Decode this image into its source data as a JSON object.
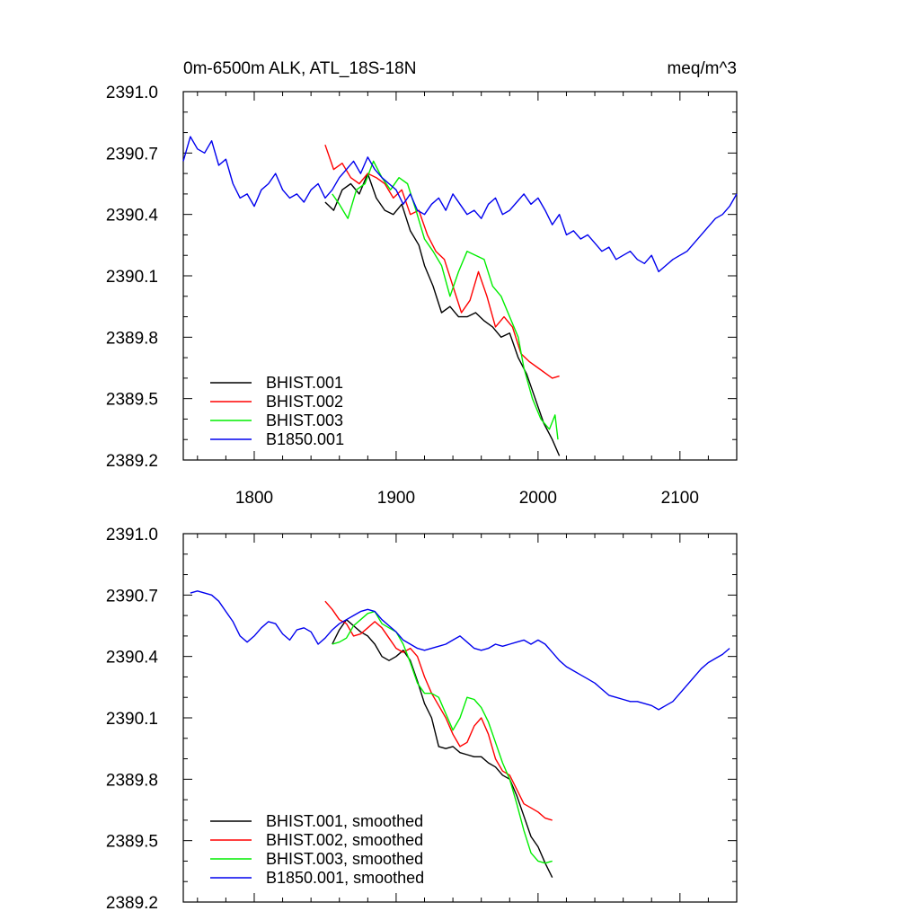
{
  "chart_data": [
    {
      "type": "line",
      "title": "0m-6500m ALK, ATL_18S-18N",
      "units": "meq/m^3",
      "xlim": [
        1750,
        2140
      ],
      "ylim": [
        2389.2,
        2391.0
      ],
      "x_ticks": [
        1800,
        1900,
        2000,
        2100
      ],
      "x_tick_labels": [
        "1800",
        "1900",
        "2000",
        "2100"
      ],
      "y_ticks": [
        2389.2,
        2389.5,
        2389.8,
        2390.1,
        2390.4,
        2390.7,
        2391.0
      ],
      "y_tick_labels": [
        "2389.2",
        "2389.5",
        "2389.8",
        "2390.1",
        "2390.4",
        "2390.7",
        "2391.0"
      ],
      "legend_position": "bottom-left",
      "series": [
        {
          "name": "BHIST.001",
          "color": "#000000",
          "x": [
            1850,
            1856,
            1862,
            1868,
            1874,
            1880,
            1886,
            1892,
            1898,
            1904,
            1910,
            1916,
            1920,
            1926,
            1932,
            1938,
            1944,
            1950,
            1956,
            1962,
            1968,
            1974,
            1980,
            1986,
            1992,
            1998,
            2004,
            2010,
            2015
          ],
          "y": [
            2390.46,
            2390.42,
            2390.52,
            2390.55,
            2390.5,
            2390.6,
            2390.48,
            2390.42,
            2390.4,
            2390.45,
            2390.32,
            2390.25,
            2390.15,
            2390.05,
            2389.92,
            2389.95,
            2389.9,
            2389.9,
            2389.92,
            2389.88,
            2389.85,
            2389.8,
            2389.82,
            2389.7,
            2389.62,
            2389.5,
            2389.38,
            2389.3,
            2389.22
          ]
        },
        {
          "name": "BHIST.002",
          "color": "#ff0000",
          "x": [
            1850,
            1856,
            1862,
            1868,
            1874,
            1880,
            1886,
            1892,
            1898,
            1904,
            1910,
            1916,
            1922,
            1928,
            1934,
            1940,
            1946,
            1952,
            1958,
            1964,
            1970,
            1976,
            1982,
            1988,
            1994,
            2000,
            2006,
            2010,
            2015
          ],
          "y": [
            2390.74,
            2390.62,
            2390.65,
            2390.58,
            2390.55,
            2390.6,
            2390.58,
            2390.55,
            2390.48,
            2390.52,
            2390.4,
            2390.42,
            2390.3,
            2390.22,
            2390.18,
            2390.05,
            2389.92,
            2389.98,
            2390.12,
            2390.0,
            2389.85,
            2389.9,
            2389.85,
            2389.72,
            2389.68,
            2389.65,
            2389.62,
            2389.6,
            2389.61
          ]
        },
        {
          "name": "BHIST.003",
          "color": "#00ee00",
          "x": [
            1855,
            1860,
            1866,
            1872,
            1878,
            1884,
            1890,
            1896,
            1902,
            1908,
            1914,
            1920,
            1926,
            1932,
            1938,
            1944,
            1950,
            1956,
            1962,
            1968,
            1974,
            1980,
            1986,
            1990,
            1996,
            2002,
            2008,
            2012,
            2014
          ],
          "y": [
            2390.5,
            2390.45,
            2390.38,
            2390.52,
            2390.55,
            2390.66,
            2390.58,
            2390.52,
            2390.58,
            2390.55,
            2390.42,
            2390.28,
            2390.22,
            2390.15,
            2390.0,
            2390.12,
            2390.22,
            2390.2,
            2390.18,
            2390.05,
            2390.0,
            2389.9,
            2389.8,
            2389.65,
            2389.5,
            2389.4,
            2389.35,
            2389.42,
            2389.3
          ]
        },
        {
          "name": "B1850.001",
          "color": "#0000ee",
          "x": [
            1750,
            1755,
            1760,
            1765,
            1770,
            1775,
            1780,
            1785,
            1790,
            1795,
            1800,
            1805,
            1810,
            1815,
            1820,
            1825,
            1830,
            1835,
            1840,
            1845,
            1850,
            1855,
            1860,
            1865,
            1870,
            1875,
            1880,
            1885,
            1890,
            1895,
            1900,
            1905,
            1910,
            1915,
            1920,
            1925,
            1930,
            1935,
            1940,
            1945,
            1950,
            1955,
            1960,
            1965,
            1970,
            1975,
            1980,
            1985,
            1990,
            1995,
            2000,
            2005,
            2010,
            2015,
            2020,
            2025,
            2030,
            2035,
            2040,
            2045,
            2050,
            2055,
            2060,
            2065,
            2070,
            2075,
            2080,
            2085,
            2090,
            2095,
            2100,
            2105,
            2110,
            2115,
            2120,
            2125,
            2130,
            2135,
            2140
          ],
          "y": [
            2390.66,
            2390.78,
            2390.72,
            2390.7,
            2390.76,
            2390.64,
            2390.67,
            2390.55,
            2390.48,
            2390.5,
            2390.44,
            2390.52,
            2390.55,
            2390.6,
            2390.52,
            2390.48,
            2390.5,
            2390.46,
            2390.52,
            2390.55,
            2390.48,
            2390.52,
            2390.58,
            2390.62,
            2390.66,
            2390.6,
            2390.68,
            2390.62,
            2390.58,
            2390.55,
            2390.52,
            2390.45,
            2390.5,
            2390.42,
            2390.4,
            2390.45,
            2390.48,
            2390.42,
            2390.5,
            2390.45,
            2390.4,
            2390.42,
            2390.38,
            2390.45,
            2390.48,
            2390.4,
            2390.42,
            2390.46,
            2390.5,
            2390.45,
            2390.48,
            2390.42,
            2390.35,
            2390.4,
            2390.3,
            2390.32,
            2390.28,
            2390.3,
            2390.26,
            2390.22,
            2390.24,
            2390.18,
            2390.2,
            2390.22,
            2390.18,
            2390.16,
            2390.2,
            2390.12,
            2390.15,
            2390.18,
            2390.2,
            2390.22,
            2390.26,
            2390.3,
            2390.34,
            2390.38,
            2390.4,
            2390.44,
            2390.5
          ]
        }
      ]
    },
    {
      "type": "line",
      "xlim": [
        1750,
        2140
      ],
      "ylim": [
        2389.2,
        2391.0
      ],
      "x_ticks": [
        1800,
        1900,
        2000,
        2100
      ],
      "y_ticks": [
        2389.2,
        2389.5,
        2389.8,
        2390.1,
        2390.4,
        2390.7,
        2391.0
      ],
      "y_tick_labels": [
        "2389.2",
        "2389.5",
        "2389.8",
        "2390.1",
        "2390.4",
        "2390.7",
        "2391.0"
      ],
      "legend_position": "bottom-left",
      "series": [
        {
          "name": "BHIST.001, smoothed",
          "color": "#000000",
          "x": [
            1855,
            1860,
            1865,
            1870,
            1875,
            1880,
            1885,
            1890,
            1895,
            1900,
            1905,
            1910,
            1915,
            1920,
            1925,
            1930,
            1935,
            1940,
            1945,
            1950,
            1955,
            1960,
            1965,
            1970,
            1975,
            1980,
            1985,
            1990,
            1995,
            2000,
            2005,
            2010
          ],
          "y": [
            2390.46,
            2390.53,
            2390.58,
            2390.55,
            2390.52,
            2390.5,
            2390.46,
            2390.4,
            2390.38,
            2390.4,
            2390.43,
            2390.38,
            2390.28,
            2390.17,
            2390.1,
            2389.96,
            2389.95,
            2389.96,
            2389.93,
            2389.92,
            2389.91,
            2389.91,
            2389.88,
            2389.86,
            2389.82,
            2389.8,
            2389.72,
            2389.62,
            2389.52,
            2389.47,
            2389.39,
            2389.32
          ]
        },
        {
          "name": "BHIST.002, smoothed",
          "color": "#ff0000",
          "x": [
            1850,
            1855,
            1860,
            1865,
            1870,
            1875,
            1880,
            1885,
            1890,
            1895,
            1900,
            1905,
            1910,
            1915,
            1920,
            1925,
            1930,
            1935,
            1940,
            1945,
            1950,
            1955,
            1960,
            1965,
            1970,
            1975,
            1980,
            1985,
            1990,
            1995,
            2000,
            2005,
            2010
          ],
          "y": [
            2390.67,
            2390.63,
            2390.58,
            2390.56,
            2390.5,
            2390.51,
            2390.54,
            2390.57,
            2390.54,
            2390.49,
            2390.44,
            2390.42,
            2390.44,
            2390.4,
            2390.3,
            2390.22,
            2390.16,
            2390.1,
            2390.02,
            2389.96,
            2389.98,
            2390.06,
            2390.1,
            2390.02,
            2389.9,
            2389.84,
            2389.82,
            2389.75,
            2389.68,
            2389.66,
            2389.64,
            2389.61,
            2389.6
          ]
        },
        {
          "name": "BHIST.003, smoothed",
          "color": "#00ee00",
          "x": [
            1855,
            1860,
            1865,
            1870,
            1875,
            1880,
            1885,
            1890,
            1895,
            1900,
            1905,
            1910,
            1915,
            1920,
            1925,
            1930,
            1935,
            1940,
            1945,
            1950,
            1955,
            1960,
            1965,
            1970,
            1975,
            1980,
            1985,
            1990,
            1995,
            2000,
            2005,
            2010
          ],
          "y": [
            2390.46,
            2390.47,
            2390.49,
            2390.55,
            2390.58,
            2390.61,
            2390.62,
            2390.56,
            2390.54,
            2390.52,
            2390.46,
            2390.37,
            2390.27,
            2390.22,
            2390.22,
            2390.2,
            2390.12,
            2390.04,
            2390.1,
            2390.2,
            2390.19,
            2390.15,
            2390.08,
            2389.98,
            2389.88,
            2389.8,
            2389.68,
            2389.55,
            2389.44,
            2389.4,
            2389.39,
            2389.4
          ]
        },
        {
          "name": "B1850.001, smoothed",
          "color": "#0000ee",
          "x": [
            1755,
            1760,
            1765,
            1770,
            1775,
            1780,
            1785,
            1790,
            1795,
            1800,
            1805,
            1810,
            1815,
            1820,
            1825,
            1830,
            1835,
            1840,
            1845,
            1850,
            1855,
            1860,
            1865,
            1870,
            1875,
            1880,
            1885,
            1890,
            1895,
            1900,
            1905,
            1910,
            1915,
            1920,
            1925,
            1930,
            1935,
            1940,
            1945,
            1950,
            1955,
            1960,
            1965,
            1970,
            1975,
            1980,
            1985,
            1990,
            1995,
            2000,
            2005,
            2010,
            2015,
            2020,
            2025,
            2030,
            2035,
            2040,
            2045,
            2050,
            2055,
            2060,
            2065,
            2070,
            2075,
            2080,
            2085,
            2090,
            2095,
            2100,
            2105,
            2110,
            2115,
            2120,
            2125,
            2130,
            2135
          ],
          "y": [
            2390.71,
            2390.72,
            2390.71,
            2390.7,
            2390.67,
            2390.62,
            2390.57,
            2390.5,
            2390.47,
            2390.5,
            2390.54,
            2390.57,
            2390.56,
            2390.51,
            2390.48,
            2390.53,
            2390.54,
            2390.52,
            2390.46,
            2390.49,
            2390.53,
            2390.56,
            2390.58,
            2390.6,
            2390.62,
            2390.63,
            2390.62,
            2390.58,
            2390.55,
            2390.52,
            2390.48,
            2390.46,
            2390.44,
            2390.43,
            2390.44,
            2390.45,
            2390.46,
            2390.48,
            2390.5,
            2390.47,
            2390.44,
            2390.43,
            2390.44,
            2390.46,
            2390.45,
            2390.46,
            2390.47,
            2390.48,
            2390.46,
            2390.48,
            2390.46,
            2390.42,
            2390.38,
            2390.35,
            2390.33,
            2390.31,
            2390.29,
            2390.27,
            2390.24,
            2390.21,
            2390.2,
            2390.19,
            2390.18,
            2390.18,
            2390.17,
            2390.16,
            2390.14,
            2390.16,
            2390.18,
            2390.22,
            2390.26,
            2390.3,
            2390.34,
            2390.37,
            2390.39,
            2390.41,
            2390.44
          ]
        }
      ]
    }
  ]
}
